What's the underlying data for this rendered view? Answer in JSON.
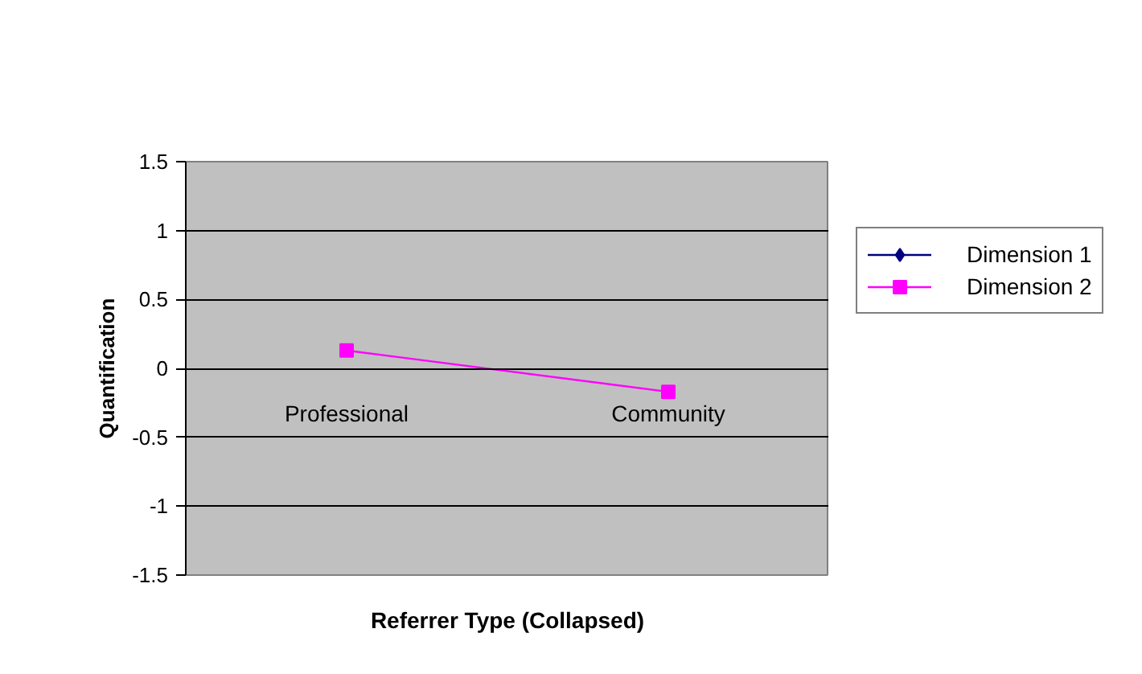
{
  "chart_data": {
    "type": "line",
    "xlabel": "Referrer Type (Collapsed)",
    "ylabel": "Quantification",
    "categories": [
      "Professional",
      "Community"
    ],
    "series": [
      {
        "name": "Dimension 1",
        "color": "#000080",
        "marker": "diamond",
        "values": [
          null,
          null
        ]
      },
      {
        "name": "Dimension 2",
        "color": "#ff00ff",
        "marker": "square",
        "values": [
          0.13,
          -0.17
        ]
      }
    ],
    "ylim": [
      -1.5,
      1.5
    ],
    "yticks": [
      -1.5,
      -1,
      -0.5,
      0,
      0.5,
      1,
      1.5
    ],
    "grid": "y",
    "legend": "right",
    "line_style": "solid"
  }
}
